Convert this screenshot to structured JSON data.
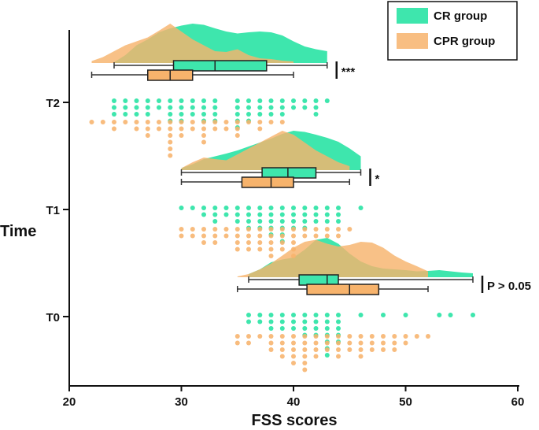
{
  "chart_data": {
    "type": "raincloud",
    "title": "",
    "xlabel": "FSS scores",
    "ylabel": "Time",
    "xlim": [
      20,
      60
    ],
    "xticks": [
      20,
      30,
      40,
      50,
      60
    ],
    "tick_labels": [
      "20",
      "30",
      "40",
      "50",
      "60"
    ],
    "categories": [
      "T0",
      "T1",
      "T2"
    ],
    "legend": {
      "position": "top-right",
      "entries": [
        "CR group",
        "CPR group"
      ]
    },
    "colors": {
      "CR group": "#3ee6ad",
      "CPR group": "#f7b36c"
    },
    "groups": [
      {
        "time": "T2",
        "significance": "***",
        "series": [
          {
            "name": "CR group",
            "box": {
              "whisker_low": 24,
              "q1": 29.3,
              "median": 33,
              "q3": 37.6,
              "whisker_high": 43
            },
            "density": [
              [
                24,
                0.02
              ],
              [
                25,
                0.2
              ],
              [
                26,
                0.45
              ],
              [
                27,
                0.6
              ],
              [
                28,
                0.78
              ],
              [
                29,
                0.88
              ],
              [
                30,
                0.95
              ],
              [
                31,
                1.0
              ],
              [
                32,
                0.97
              ],
              [
                33,
                0.88
              ],
              [
                34,
                0.8
              ],
              [
                35,
                0.75
              ],
              [
                36,
                0.78
              ],
              [
                37,
                0.8
              ],
              [
                38,
                0.78
              ],
              [
                39,
                0.7
              ],
              [
                40,
                0.55
              ],
              [
                41,
                0.42
              ],
              [
                42,
                0.35
              ],
              [
                43,
                0.3
              ]
            ],
            "points": [
              [
                24,
                3
              ],
              [
                25,
                3
              ],
              [
                26,
                3
              ],
              [
                27,
                3
              ],
              [
                28,
                2
              ],
              [
                29,
                4
              ],
              [
                30,
                4
              ],
              [
                31,
                3
              ],
              [
                32,
                4
              ],
              [
                33,
                4
              ],
              [
                35,
                5
              ],
              [
                36,
                4
              ],
              [
                37,
                3
              ],
              [
                38,
                3
              ],
              [
                39,
                3
              ],
              [
                40,
                2
              ],
              [
                41,
                2
              ],
              [
                42,
                3
              ],
              [
                43,
                1
              ]
            ]
          },
          {
            "name": "CPR group",
            "box": {
              "whisker_low": 22,
              "q1": 27,
              "median": 29,
              "q3": 31,
              "whisker_high": 40
            },
            "density": [
              [
                22,
                0.05
              ],
              [
                23,
                0.15
              ],
              [
                24,
                0.3
              ],
              [
                25,
                0.45
              ],
              [
                26,
                0.55
              ],
              [
                27,
                0.65
              ],
              [
                28,
                0.82
              ],
              [
                29,
                1.0
              ],
              [
                30,
                0.8
              ],
              [
                31,
                0.6
              ],
              [
                32,
                0.45
              ],
              [
                33,
                0.3
              ],
              [
                34,
                0.28
              ],
              [
                35,
                0.35
              ],
              [
                36,
                0.2
              ],
              [
                37,
                0.12
              ],
              [
                38,
                0.1
              ],
              [
                39,
                0.06
              ],
              [
                40,
                0.04
              ]
            ],
            "points": [
              [
                22,
                1
              ],
              [
                23,
                1
              ],
              [
                24,
                2
              ],
              [
                25,
                1
              ],
              [
                26,
                2
              ],
              [
                27,
                3
              ],
              [
                28,
                2
              ],
              [
                29,
                6
              ],
              [
                30,
                3
              ],
              [
                31,
                2
              ],
              [
                32,
                4
              ],
              [
                33,
                2
              ],
              [
                34,
                2
              ],
              [
                35,
                3
              ],
              [
                36,
                1
              ],
              [
                37,
                2
              ],
              [
                38,
                1
              ],
              [
                39,
                1
              ]
            ]
          }
        ]
      },
      {
        "time": "T1",
        "significance": "*",
        "series": [
          {
            "name": "CR group",
            "box": {
              "whisker_low": 30,
              "q1": 37.2,
              "median": 39.5,
              "q3": 42,
              "whisker_high": 46
            },
            "density": [
              [
                30,
                0.05
              ],
              [
                31,
                0.15
              ],
              [
                32,
                0.28
              ],
              [
                33,
                0.35
              ],
              [
                34,
                0.42
              ],
              [
                35,
                0.5
              ],
              [
                36,
                0.6
              ],
              [
                37,
                0.7
              ],
              [
                38,
                0.8
              ],
              [
                39,
                0.92
              ],
              [
                40,
                1.0
              ],
              [
                41,
                0.97
              ],
              [
                42,
                0.9
              ],
              [
                43,
                0.82
              ],
              [
                44,
                0.72
              ],
              [
                45,
                0.55
              ],
              [
                46,
                0.35
              ]
            ],
            "points": [
              [
                30,
                1
              ],
              [
                31,
                1
              ],
              [
                32,
                2
              ],
              [
                33,
                3
              ],
              [
                34,
                2
              ],
              [
                35,
                3
              ],
              [
                36,
                4
              ],
              [
                37,
                4
              ],
              [
                38,
                5
              ],
              [
                39,
                6
              ],
              [
                40,
                4
              ],
              [
                41,
                4
              ],
              [
                42,
                3
              ],
              [
                43,
                3
              ],
              [
                44,
                3
              ],
              [
                46,
                1
              ]
            ]
          },
          {
            "name": "CPR group",
            "box": {
              "whisker_low": 30,
              "q1": 35.4,
              "median": 38,
              "q3": 40,
              "whisker_high": 45
            },
            "density": [
              [
                30,
                0.05
              ],
              [
                31,
                0.2
              ],
              [
                32,
                0.32
              ],
              [
                33,
                0.28
              ],
              [
                34,
                0.25
              ],
              [
                35,
                0.4
              ],
              [
                36,
                0.55
              ],
              [
                37,
                0.7
              ],
              [
                38,
                0.85
              ],
              [
                39,
                1.0
              ],
              [
                40,
                0.9
              ],
              [
                41,
                0.7
              ],
              [
                42,
                0.5
              ],
              [
                43,
                0.35
              ],
              [
                44,
                0.2
              ],
              [
                45,
                0.1
              ]
            ],
            "points": [
              [
                30,
                2
              ],
              [
                31,
                2
              ],
              [
                32,
                3
              ],
              [
                33,
                3
              ],
              [
                34,
                2
              ],
              [
                35,
                4
              ],
              [
                36,
                4
              ],
              [
                37,
                4
              ],
              [
                38,
                5
              ],
              [
                39,
                4
              ],
              [
                40,
                5
              ],
              [
                41,
                2
              ],
              [
                42,
                2
              ],
              [
                43,
                2
              ],
              [
                44,
                2
              ],
              [
                45,
                1
              ]
            ]
          }
        ]
      },
      {
        "time": "T0",
        "significance": "P > 0.05",
        "series": [
          {
            "name": "CR group",
            "box": {
              "whisker_low": 36,
              "q1": 40.5,
              "median": 43,
              "q3": 44,
              "whisker_high": 56
            },
            "density": [
              [
                36,
                0.08
              ],
              [
                37,
                0.2
              ],
              [
                38,
                0.38
              ],
              [
                39,
                0.45
              ],
              [
                40,
                0.5
              ],
              [
                41,
                0.7
              ],
              [
                42,
                0.95
              ],
              [
                43,
                1.0
              ],
              [
                44,
                0.85
              ],
              [
                45,
                0.6
              ],
              [
                46,
                0.4
              ],
              [
                47,
                0.28
              ],
              [
                48,
                0.22
              ],
              [
                49,
                0.2
              ],
              [
                50,
                0.18
              ],
              [
                51,
                0.15
              ],
              [
                52,
                0.16
              ],
              [
                53,
                0.18
              ],
              [
                54,
                0.15
              ],
              [
                55,
                0.12
              ],
              [
                56,
                0.1
              ]
            ],
            "points": [
              [
                36,
                2
              ],
              [
                37,
                2
              ],
              [
                38,
                3
              ],
              [
                39,
                3
              ],
              [
                40,
                3
              ],
              [
                41,
                4
              ],
              [
                42,
                4
              ],
              [
                43,
                7
              ],
              [
                44,
                5
              ],
              [
                46,
                1
              ],
              [
                48,
                1
              ],
              [
                50,
                1
              ],
              [
                53,
                1
              ],
              [
                54,
                1
              ],
              [
                56,
                1
              ]
            ]
          },
          {
            "name": "CPR group",
            "box": {
              "whisker_low": 35,
              "q1": 41.2,
              "median": 45,
              "q3": 47.6,
              "whisker_high": 52
            },
            "density": [
              [
                35,
                0.02
              ],
              [
                36,
                0.08
              ],
              [
                37,
                0.2
              ],
              [
                38,
                0.35
              ],
              [
                39,
                0.55
              ],
              [
                40,
                0.75
              ],
              [
                41,
                0.9
              ],
              [
                42,
                0.95
              ],
              [
                43,
                0.85
              ],
              [
                44,
                0.78
              ],
              [
                45,
                0.82
              ],
              [
                46,
                0.9
              ],
              [
                47,
                0.88
              ],
              [
                48,
                0.75
              ],
              [
                49,
                0.55
              ],
              [
                50,
                0.4
              ],
              [
                51,
                0.28
              ],
              [
                52,
                0.15
              ]
            ],
            "points": [
              [
                35,
                2
              ],
              [
                36,
                2
              ],
              [
                37,
                1
              ],
              [
                38,
                3
              ],
              [
                39,
                4
              ],
              [
                40,
                5
              ],
              [
                41,
                6
              ],
              [
                42,
                4
              ],
              [
                43,
                3
              ],
              [
                44,
                4
              ],
              [
                45,
                3
              ],
              [
                46,
                4
              ],
              [
                47,
                3
              ],
              [
                48,
                3
              ],
              [
                49,
                3
              ],
              [
                50,
                2
              ],
              [
                51,
                1
              ],
              [
                52,
                1
              ]
            ]
          }
        ]
      }
    ]
  }
}
